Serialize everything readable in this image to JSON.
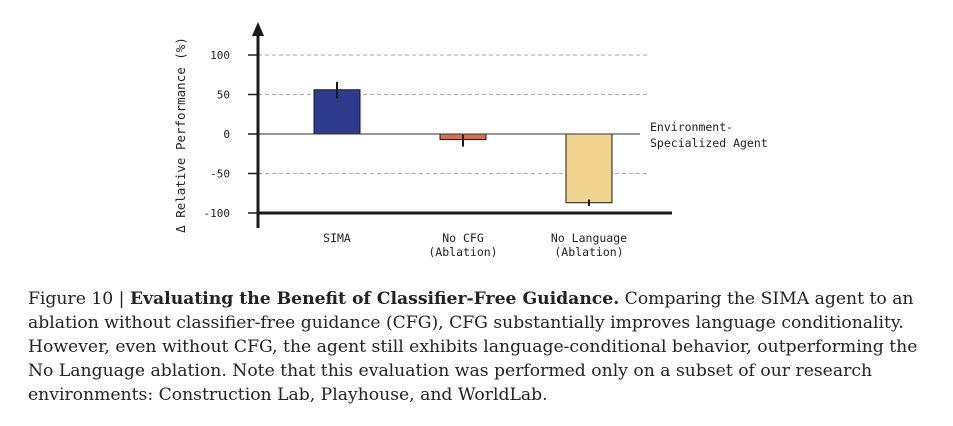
{
  "chart_data": {
    "type": "bar",
    "ylabel": "Δ Relative Performance (%)",
    "ylim": [
      -100,
      120
    ],
    "yticks": [
      100,
      50,
      0,
      -50,
      -100
    ],
    "categories": [
      {
        "lines": [
          "SIMA"
        ]
      },
      {
        "lines": [
          "No CFG",
          "(Ablation)"
        ]
      },
      {
        "lines": [
          "No Language",
          "(Ablation)"
        ]
      }
    ],
    "values": [
      56,
      -7,
      -87
    ],
    "errors": [
      {
        "low": 45,
        "high": 66
      },
      {
        "low": -16,
        "high": -1
      },
      {
        "low": -91,
        "high": -83
      }
    ],
    "colors": [
      "#2e3a8c",
      "#d4704f",
      "#efd48f"
    ],
    "reference_line": {
      "value": 0,
      "label_lines": [
        "Environment-",
        "Specialized Agent"
      ]
    },
    "grid": "dashed"
  },
  "caption": {
    "prefix": "Figure 10 | ",
    "title": "Evaluating the Benefit of Classifier-Free Guidance.",
    "body": " Comparing the SIMA agent to an ablation without classifier-free guidance (CFG), CFG substantially improves language conditionality. However, even without CFG, the agent still exhibits language-conditional behavior, outperforming the No Language ablation. Note that this evaluation was performed only on a subset of our research environments: Construction Lab, Playhouse, and WorldLab."
  }
}
